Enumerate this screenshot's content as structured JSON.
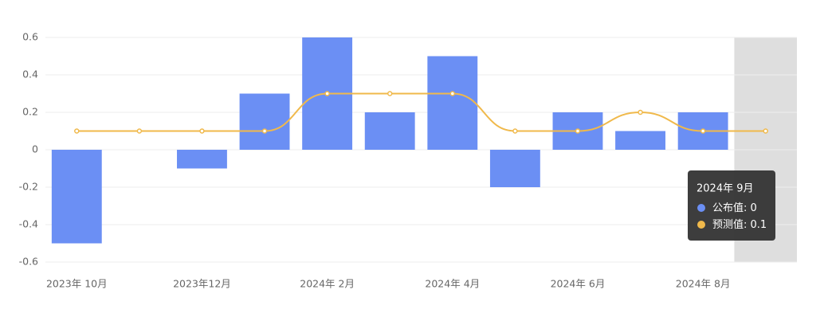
{
  "chart_data": {
    "type": "bar-line",
    "categories": [
      "2023年 10月",
      null,
      "2023年12月",
      null,
      "2024年 2月",
      null,
      "2024年 4月",
      null,
      "2024年 6月",
      null,
      "2024年 8月",
      null
    ],
    "series": [
      {
        "name": "公布值",
        "type": "bar",
        "color": "#6b8ff4",
        "values": [
          -0.5,
          0,
          -0.1,
          0.3,
          0.6,
          0.2,
          0.5,
          -0.2,
          0.2,
          0.1,
          0.2,
          0
        ]
      },
      {
        "name": "预测值",
        "type": "line",
        "color": "#f0b94b",
        "values": [
          0.1,
          0.1,
          0.1,
          0.1,
          0.3,
          0.3,
          0.3,
          0.1,
          0.1,
          0.2,
          0.1,
          0.1
        ]
      }
    ],
    "ylim": [
      -0.6,
      0.6
    ],
    "yticks": [
      -0.6,
      -0.4,
      -0.2,
      0,
      0.2,
      0.4,
      0.6
    ],
    "grid": true,
    "tooltip": {
      "title": "2024年 9月",
      "index": 11,
      "separator": ": "
    }
  }
}
